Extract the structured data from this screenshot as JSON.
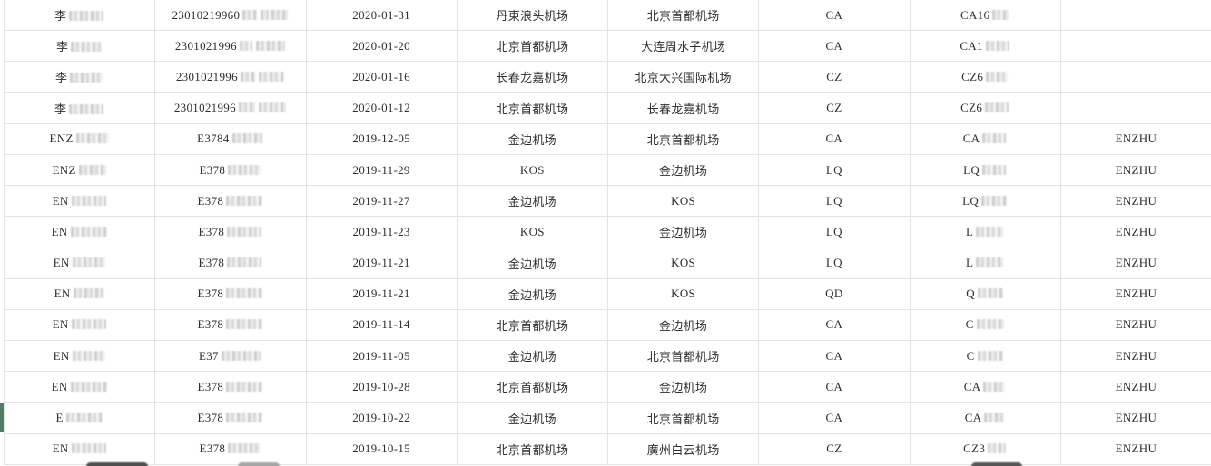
{
  "accent_colors": {
    "row_marker_green": "#527e68",
    "gridline": "#e4e4e4",
    "text": "#2e2e2e"
  },
  "row_marker": {
    "row_index": 13
  },
  "table": {
    "columns": [
      "name",
      "doc",
      "date",
      "from",
      "to",
      "airline",
      "flight",
      "tag"
    ],
    "rows": [
      {
        "name": {
          "prefix": "李",
          "redact": [
            38
          ]
        },
        "doc": {
          "prefix": "23010219960",
          "redact": [
            16,
            30
          ]
        },
        "date": "2020-01-31",
        "from": "丹東浪头机场",
        "to": "北京首都机场",
        "airline": "CA",
        "flight": {
          "prefix": "CA16",
          "redact": [
            18
          ]
        },
        "tag": ""
      },
      {
        "name": {
          "prefix": "李",
          "redact": [
            34
          ]
        },
        "doc": {
          "prefix": "2301021996",
          "redact": [
            14,
            32
          ]
        },
        "date": "2020-01-20",
        "from": "北京首都机场",
        "to": "大连周水子机场",
        "airline": "CA",
        "flight": {
          "prefix": "CA1",
          "redact": [
            26
          ]
        },
        "tag": ""
      },
      {
        "name": {
          "prefix": "李",
          "redact": [
            36
          ]
        },
        "doc": {
          "prefix": "2301021996",
          "redact": [
            16,
            28
          ]
        },
        "date": "2020-01-16",
        "from": "长春龙嘉机场",
        "to": "北京大兴国际机场",
        "airline": "CZ",
        "flight": {
          "prefix": "CZ6",
          "redact": [
            24
          ]
        },
        "tag": ""
      },
      {
        "name": {
          "prefix": "李",
          "redact": [
            38
          ]
        },
        "doc": {
          "prefix": "2301021996",
          "redact": [
            18,
            30
          ]
        },
        "date": "2020-01-12",
        "from": "北京首都机场",
        "to": "长春龙嘉机场",
        "airline": "CZ",
        "flight": {
          "prefix": "CZ6",
          "redact": [
            26
          ]
        },
        "tag": ""
      },
      {
        "name": {
          "prefix": "ENZ",
          "redact": [
            36
          ]
        },
        "doc": {
          "prefix": "E3784",
          "redact": [
            34
          ]
        },
        "date": "2019-12-05",
        "from": "金边机场",
        "to": "北京首都机场",
        "airline": "CA",
        "flight": {
          "prefix": "CA",
          "redact": [
            26
          ]
        },
        "tag": "ENZHU"
      },
      {
        "name": {
          "prefix": "ENZ",
          "redact": [
            30
          ]
        },
        "doc": {
          "prefix": "E378",
          "redact": [
            36
          ]
        },
        "date": "2019-11-29",
        "from": "KOS",
        "to": "金边机场",
        "airline": "LQ",
        "flight": {
          "prefix": "LQ",
          "redact": [
            26
          ]
        },
        "tag": "ENZHU"
      },
      {
        "name": {
          "prefix": "EN",
          "redact": [
            38
          ]
        },
        "doc": {
          "prefix": "E378",
          "redact": [
            40
          ]
        },
        "date": "2019-11-27",
        "from": "金边机场",
        "to": "KOS",
        "airline": "LQ",
        "flight": {
          "prefix": "LQ",
          "redact": [
            28
          ]
        },
        "tag": "ENZHU"
      },
      {
        "name": {
          "prefix": "EN",
          "redact": [
            40
          ]
        },
        "doc": {
          "prefix": "E378",
          "redact": [
            38
          ]
        },
        "date": "2019-11-23",
        "from": "KOS",
        "to": "金边机场",
        "airline": "LQ",
        "flight": {
          "prefix": "L",
          "redact": [
            30
          ]
        },
        "tag": "ENZHU"
      },
      {
        "name": {
          "prefix": "EN",
          "redact": [
            36
          ]
        },
        "doc": {
          "prefix": "E378",
          "redact": [
            38
          ]
        },
        "date": "2019-11-21",
        "from": "金边机场",
        "to": "KOS",
        "airline": "LQ",
        "flight": {
          "prefix": "L",
          "redact": [
            30
          ]
        },
        "tag": "ENZHU"
      },
      {
        "name": {
          "prefix": "EN",
          "redact": [
            34
          ]
        },
        "doc": {
          "prefix": "E378",
          "redact": [
            40
          ]
        },
        "date": "2019-11-21",
        "from": "金边机场",
        "to": "KOS",
        "airline": "QD",
        "flight": {
          "prefix": "Q",
          "redact": [
            28
          ]
        },
        "tag": "ENZHU"
      },
      {
        "name": {
          "prefix": "EN",
          "redact": [
            38
          ]
        },
        "doc": {
          "prefix": "E378",
          "redact": [
            40
          ]
        },
        "date": "2019-11-14",
        "from": "北京首都机场",
        "to": "金边机场",
        "airline": "CA",
        "flight": {
          "prefix": "C",
          "redact": [
            30
          ]
        },
        "tag": "ENZHU"
      },
      {
        "name": {
          "prefix": "EN",
          "redact": [
            36
          ]
        },
        "doc": {
          "prefix": "E37",
          "redact": [
            44
          ]
        },
        "date": "2019-11-05",
        "from": "金边机场",
        "to": "北京首都机场",
        "airline": "CA",
        "flight": {
          "prefix": "C",
          "redact": [
            28
          ]
        },
        "tag": "ENZHU"
      },
      {
        "name": {
          "prefix": "EN",
          "redact": [
            40
          ]
        },
        "doc": {
          "prefix": "E378",
          "redact": [
            40
          ]
        },
        "date": "2019-10-28",
        "from": "北京首都机场",
        "to": "金边机场",
        "airline": "CA",
        "flight": {
          "prefix": "CA",
          "redact": [
            24
          ]
        },
        "tag": "ENZHU"
      },
      {
        "name": {
          "prefix": "E",
          "redact": [
            40
          ]
        },
        "doc": {
          "prefix": "E378",
          "redact": [
            40
          ]
        },
        "date": "2019-10-22",
        "from": "金边机场",
        "to": "北京首都机场",
        "airline": "CA",
        "flight": {
          "prefix": "CA",
          "redact": [
            22
          ]
        },
        "tag": "ENZHU"
      },
      {
        "name": {
          "prefix": "EN",
          "redact": [
            38
          ]
        },
        "doc": {
          "prefix": "E378",
          "redact": [
            36
          ]
        },
        "date": "2019-10-15",
        "from": "北京首都机场",
        "to": "廣州白云机场",
        "airline": "CZ",
        "flight": {
          "prefix": "CZ3",
          "redact": [
            20
          ]
        },
        "tag": "ENZHU"
      }
    ]
  }
}
